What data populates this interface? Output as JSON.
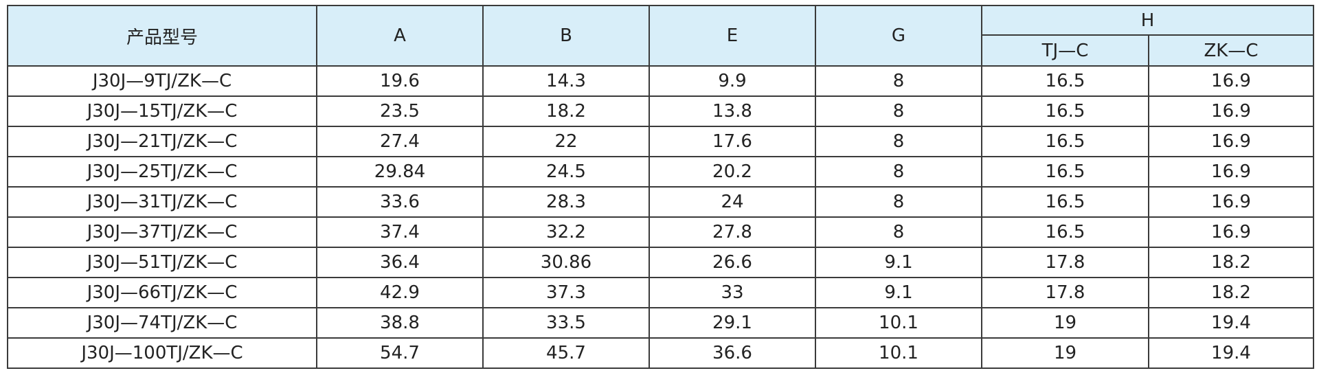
{
  "table": {
    "header": {
      "columns": [
        "产品型号",
        "A",
        "B",
        "E",
        "G",
        "H"
      ],
      "sub_columns": [
        "TJ—C",
        "ZK—C"
      ]
    },
    "rows": [
      [
        "J30J—9TJ/ZK—C",
        19.6,
        14.3,
        9.9,
        8,
        16.5,
        16.9
      ],
      [
        "J30J—15TJ/ZK—C",
        23.5,
        18.2,
        13.8,
        8,
        16.5,
        16.9
      ],
      [
        "J30J—21TJ/ZK—C",
        27.4,
        22,
        17.6,
        8,
        16.5,
        16.9
      ],
      [
        "J30J—25TJ/ZK—C",
        29.84,
        24.5,
        20.2,
        8,
        16.5,
        16.9
      ],
      [
        "J30J—31TJ/ZK—C",
        33.6,
        28.3,
        24,
        8,
        16.5,
        16.9
      ],
      [
        "J30J—37TJ/ZK—C",
        37.4,
        32.2,
        27.8,
        8,
        16.5,
        16.9
      ],
      [
        "J30J—51TJ/ZK—C",
        36.4,
        30.86,
        26.6,
        9.1,
        17.8,
        18.2
      ],
      [
        "J30J—66TJ/ZK—C",
        42.9,
        37.3,
        33,
        9.1,
        17.8,
        18.2
      ],
      [
        "J30J—74TJ/ZK—C",
        38.8,
        33.5,
        29.1,
        10.1,
        19,
        19.4
      ],
      [
        "J30J—100TJ/ZK—C",
        54.7,
        45.7,
        36.6,
        10.1,
        19,
        19.4
      ]
    ]
  }
}
